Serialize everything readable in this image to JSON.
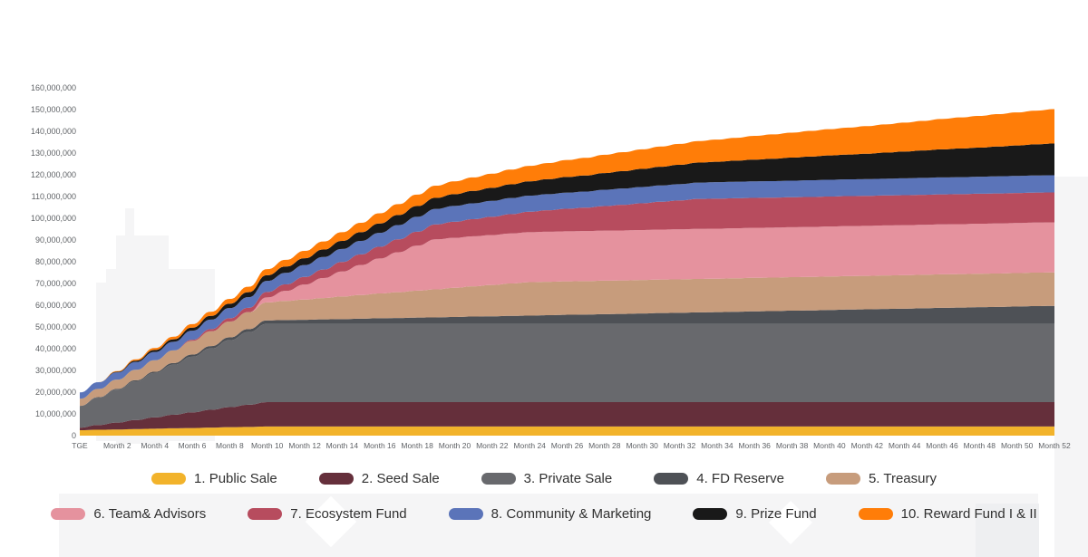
{
  "chart_data": {
    "type": "area",
    "stacked": true,
    "title": "",
    "values_unit": "millions of tokens",
    "x_range": [
      0,
      52
    ],
    "x_axis": {
      "tick_labels": [
        "TGE",
        "Month 2",
        "Month 4",
        "Month 6",
        "Month 8",
        "Month 10",
        "Month 12",
        "Month 14",
        "Month 16",
        "Month 18",
        "Month 20",
        "Month 22",
        "Month 24",
        "Month 26",
        "Month 28",
        "Month 30",
        "Month 32",
        "Month 34",
        "Month 36",
        "Month 38",
        "Month 40",
        "Month 42",
        "Month 44",
        "Month 46",
        "Month 48",
        "Month 50",
        "Month 52"
      ],
      "tick_months": [
        0,
        2,
        4,
        6,
        8,
        10,
        12,
        14,
        16,
        18,
        20,
        22,
        24,
        26,
        28,
        30,
        32,
        34,
        36,
        38,
        40,
        42,
        44,
        46,
        48,
        50,
        52
      ]
    },
    "y_axis": {
      "min": 0,
      "max": 160000000,
      "tick_labels": [
        "0",
        "10,000,000",
        "20,000,000",
        "30,000,000",
        "40,000,000",
        "50,000,000",
        "60,000,000",
        "70,000,000",
        "80,000,000",
        "90,000,000",
        "100,000,000",
        "110,000,000",
        "120,000,000",
        "130,000,000",
        "140,000,000",
        "150,000,000",
        "160,000,000"
      ]
    },
    "legend_position": "bottom, two centered rows (1-5, 6-10)",
    "grid": false,
    "series": [
      {
        "name": "1. Public Sale",
        "color": "#F2B32B",
        "values": [
          2.5,
          2.7,
          2.8,
          3.0,
          3.2,
          3.4,
          3.5,
          3.7,
          3.9,
          4.0,
          4.2,
          4.2,
          4.2,
          4.2,
          4.2,
          4.2,
          4.2,
          4.2,
          4.2,
          4.2,
          4.2,
          4.2,
          4.2,
          4.2,
          4.2,
          4.2,
          4.2,
          4.2,
          4.2,
          4.2,
          4.2,
          4.2,
          4.2,
          4.2,
          4.2,
          4.2,
          4.2,
          4.2,
          4.2,
          4.2,
          4.2,
          4.2,
          4.2,
          4.2,
          4.2,
          4.2,
          4.2,
          4.2,
          4.2,
          4.2,
          4.2,
          4.2,
          4.2
        ]
      },
      {
        "name": "2. Seed Sale",
        "color": "#652F3B",
        "values": [
          1.2,
          2.2,
          3.2,
          4.2,
          5.2,
          6.2,
          7.2,
          8.2,
          9.2,
          10.2,
          11.2,
          11.2,
          11.2,
          11.2,
          11.2,
          11.2,
          11.2,
          11.2,
          11.2,
          11.2,
          11.2,
          11.2,
          11.2,
          11.2,
          11.2,
          11.2,
          11.2,
          11.2,
          11.2,
          11.2,
          11.2,
          11.2,
          11.2,
          11.2,
          11.2,
          11.2,
          11.2,
          11.2,
          11.2,
          11.2,
          11.2,
          11.2,
          11.2,
          11.2,
          11.2,
          11.2,
          11.2,
          11.2,
          11.2,
          11.2,
          11.2,
          11.2,
          11.2
        ]
      },
      {
        "name": "3. Private Sale",
        "color": "#68696D",
        "values": [
          10,
          12.6,
          15.2,
          17.8,
          20.4,
          23,
          25.6,
          28.2,
          30.8,
          33.4,
          36,
          36,
          36,
          36,
          36,
          36,
          36,
          36,
          36,
          36,
          36,
          36,
          36,
          36,
          36,
          36,
          36,
          36,
          36,
          36,
          36,
          36,
          36,
          36,
          36,
          36,
          36,
          36,
          36,
          36,
          36,
          36,
          36,
          36,
          36,
          36,
          36,
          36,
          36,
          36,
          36,
          36,
          36
        ]
      },
      {
        "name": "4. FD Reserve",
        "color": "#4E5156",
        "values": [
          0,
          0.2,
          0.3,
          0.5,
          0.6,
          0.8,
          1.0,
          1.1,
          1.3,
          1.4,
          1.6,
          1.8,
          1.9,
          2.1,
          2.2,
          2.4,
          2.6,
          2.7,
          2.9,
          3.0,
          3.2,
          3.4,
          3.5,
          3.7,
          3.8,
          4.0,
          4.2,
          4.3,
          4.5,
          4.6,
          4.8,
          5.0,
          5.1,
          5.3,
          5.4,
          5.6,
          5.8,
          5.9,
          6.1,
          6.2,
          6.4,
          6.6,
          6.7,
          6.9,
          7.0,
          7.2,
          7.4,
          7.5,
          7.7,
          7.8,
          8.0,
          8.2,
          8.3
        ]
      },
      {
        "name": "5. Treasury",
        "color": "#C79C7C",
        "values": [
          3.3,
          3.8,
          4.3,
          4.8,
          5.3,
          5.8,
          6.3,
          6.8,
          7.3,
          7.8,
          8.3,
          8.8,
          9.3,
          9.8,
          10.4,
          10.9,
          11.4,
          11.9,
          12.4,
          12.9,
          13.4,
          13.9,
          14.4,
          14.9,
          15.4,
          15.4,
          15.4,
          15.4,
          15.4,
          15.4,
          15.4,
          15.4,
          15.4,
          15.4,
          15.4,
          15.4,
          15.4,
          15.4,
          15.4,
          15.4,
          15.4,
          15.4,
          15.4,
          15.4,
          15.4,
          15.4,
          15.4,
          15.4,
          15.4,
          15.4,
          15.4,
          15.4,
          15.4
        ]
      },
      {
        "name": "6. Team& Advisors",
        "color": "#E5929E",
        "values": [
          0,
          0,
          0,
          0,
          0,
          0,
          0,
          0,
          0,
          0,
          2.3,
          4.6,
          6.9,
          9.2,
          11.5,
          13.8,
          16.1,
          18.4,
          20.7,
          23,
          23,
          23,
          23,
          23,
          23,
          23,
          23,
          23,
          23,
          23,
          23,
          23,
          23,
          23,
          23,
          23,
          23,
          23,
          23,
          23,
          23,
          23,
          23,
          23,
          23,
          23,
          23,
          23,
          23,
          23,
          23,
          23,
          23
        ]
      },
      {
        "name": "7. Ecosystem Fund",
        "color": "#B74C5E",
        "values": [
          0,
          0,
          0,
          0,
          0,
          0,
          0.5,
          1.0,
          1.5,
          2.0,
          2.5,
          3.0,
          3.5,
          3.9,
          4.4,
          4.9,
          5.4,
          5.9,
          6.4,
          6.9,
          7.4,
          7.9,
          8.4,
          8.9,
          9.4,
          9.9,
          10.4,
          10.8,
          11.3,
          11.8,
          12.3,
          12.8,
          13.3,
          13.8,
          13.8,
          13.8,
          13.8,
          13.8,
          13.8,
          13.8,
          13.8,
          13.8,
          13.8,
          13.8,
          13.8,
          13.8,
          13.8,
          13.8,
          13.8,
          13.8,
          13.8,
          13.8,
          13.8
        ]
      },
      {
        "name": "8. Community & Marketing",
        "color": "#5B74B9",
        "values": [
          2.9,
          3.1,
          3.3,
          3.6,
          3.8,
          4.0,
          4.2,
          4.4,
          4.7,
          4.9,
          5.1,
          5.3,
          5.5,
          5.8,
          6.0,
          6.2,
          6.4,
          6.6,
          6.9,
          7.1,
          7.3,
          7.3,
          7.3,
          7.4,
          7.4,
          7.4,
          7.4,
          7.4,
          7.5,
          7.5,
          7.5,
          7.5,
          7.5,
          7.5,
          7.6,
          7.6,
          7.6,
          7.6,
          7.6,
          7.7,
          7.7,
          7.7,
          7.7,
          7.7,
          7.8,
          7.8,
          7.8,
          7.8,
          7.8,
          7.9,
          7.9,
          7.9,
          7.9
        ]
      },
      {
        "name": "9. Prize Fund",
        "color": "#191919",
        "values": [
          0,
          0,
          0.3,
          0.6,
          0.9,
          1.1,
          1.4,
          1.7,
          2.0,
          2.3,
          2.6,
          2.9,
          3.1,
          3.4,
          3.7,
          4.0,
          4.3,
          4.6,
          4.9,
          5.1,
          5.4,
          5.7,
          6.0,
          6.3,
          6.6,
          6.9,
          7.2,
          7.4,
          7.7,
          8.0,
          8.3,
          8.6,
          8.9,
          9.2,
          9.4,
          9.7,
          10.0,
          10.3,
          10.6,
          10.9,
          11.2,
          11.4,
          11.7,
          12.0,
          12.3,
          12.6,
          12.9,
          13.2,
          13.4,
          13.7,
          14.0,
          14.3,
          14.6
        ]
      },
      {
        "name": "10. Reward Fund I & II",
        "color": "#FF7D08",
        "values": [
          0,
          0,
          0.3,
          0.6,
          0.9,
          1.2,
          1.6,
          1.9,
          2.2,
          2.5,
          2.8,
          3.1,
          3.4,
          3.7,
          4.0,
          4.3,
          4.7,
          5.0,
          5.3,
          5.6,
          5.9,
          6.2,
          6.5,
          6.8,
          7.1,
          7.4,
          7.8,
          8.1,
          8.4,
          8.7,
          9.0,
          9.3,
          9.6,
          9.9,
          10.2,
          10.5,
          10.9,
          11.2,
          11.5,
          11.8,
          12.1,
          12.4,
          12.7,
          13.0,
          13.3,
          13.6,
          14.0,
          14.3,
          14.6,
          14.9,
          15.2,
          15.5,
          15.8
        ]
      }
    ]
  },
  "legend": {
    "rows": [
      [
        0,
        1,
        2,
        3,
        4
      ],
      [
        5,
        6,
        7,
        8,
        9
      ]
    ]
  }
}
